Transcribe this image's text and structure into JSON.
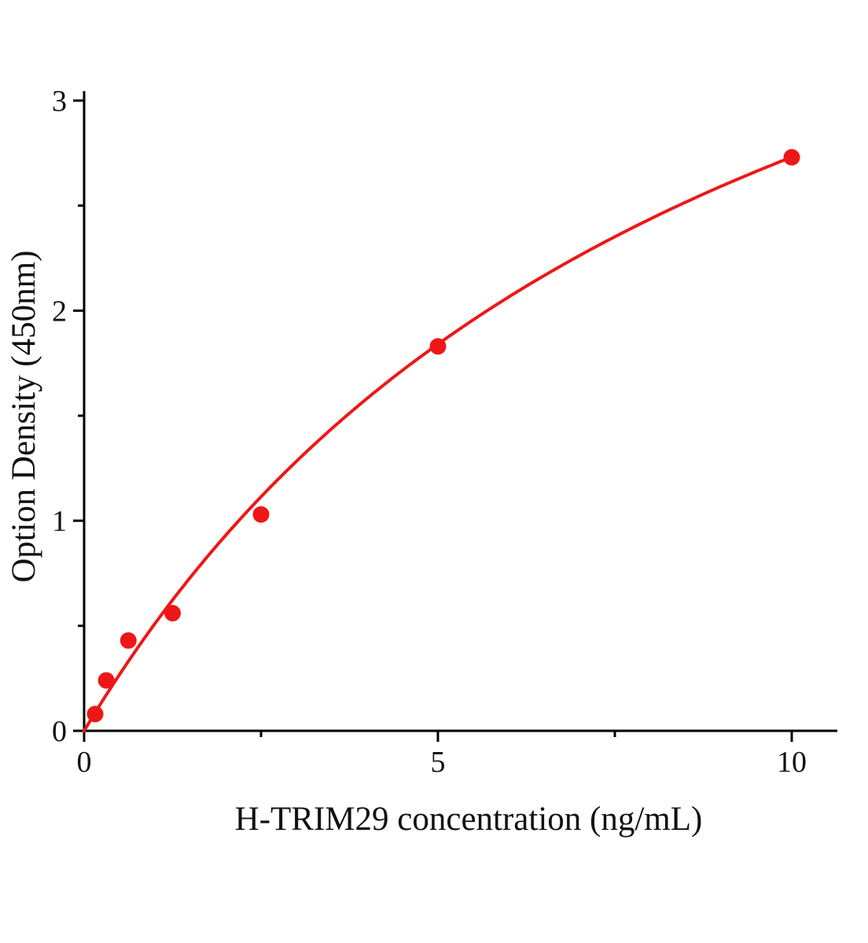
{
  "chart_data": {
    "type": "scatter",
    "title": "",
    "xlabel": "H-TRIM29 concentration (ng/mL)",
    "ylabel": "Option Density (450nm)",
    "x": [
      0.156,
      0.313,
      0.625,
      1.25,
      2.5,
      5,
      10
    ],
    "y": [
      0.08,
      0.24,
      0.43,
      0.56,
      1.03,
      1.83,
      2.73
    ],
    "xlim": [
      0,
      10
    ],
    "ylim": [
      0,
      3
    ],
    "x_major_ticks": [
      0,
      5,
      10
    ],
    "x_minor_ticks": [
      2.5,
      7.5
    ],
    "y_major_ticks": [
      0,
      1,
      2,
      3
    ],
    "y_minor_ticks": [
      0.5,
      1.5,
      2.5
    ],
    "grid": false,
    "legend": "none",
    "marker_color": "#ee1717",
    "curve_color": "#ee1717",
    "fit": {
      "type": "michaelis_menten",
      "vmax": 5.29,
      "km": 9.37
    }
  }
}
